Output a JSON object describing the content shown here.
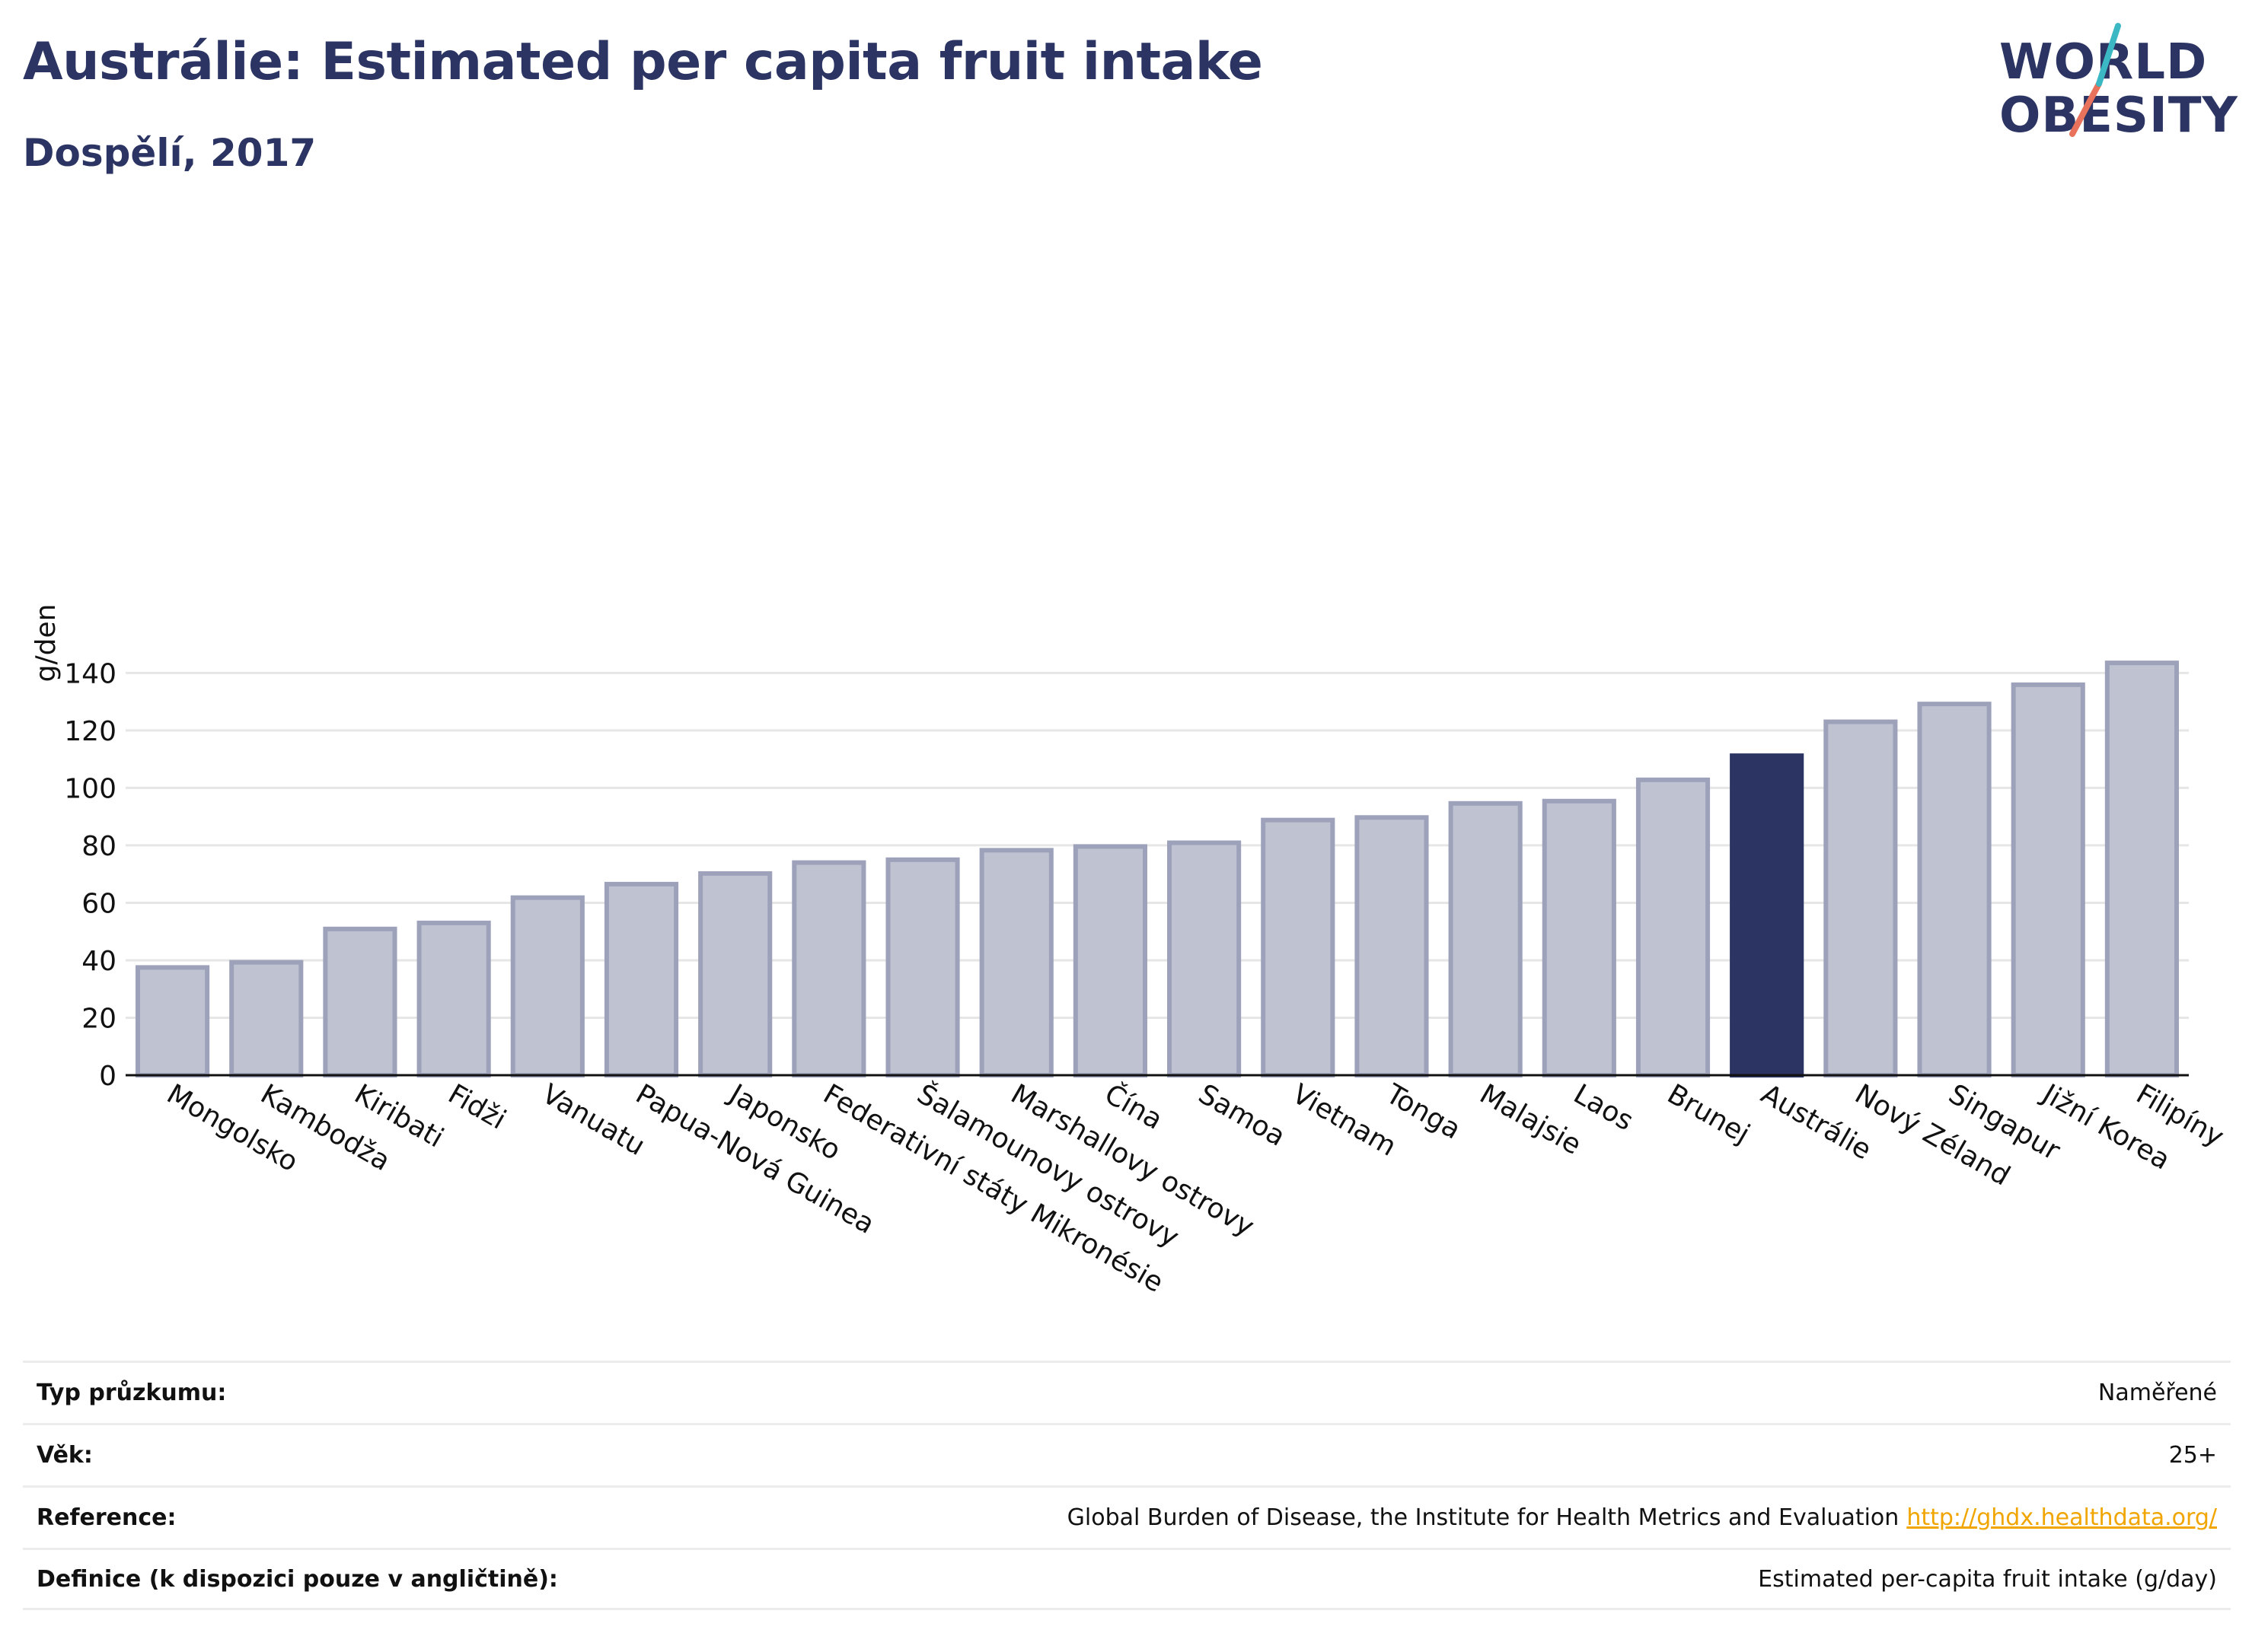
{
  "header": {
    "title": "Austrálie: Estimated per capita fruit intake",
    "subtitle": "Dospělí, 2017"
  },
  "logo": {
    "line1": "WORLD",
    "line2": "OBESITY"
  },
  "colors": {
    "highlight": "#2b3462",
    "bar": "#bfc2d1",
    "bar_border": "#9da2ba",
    "text": "#2b3462",
    "link": "#f0a500"
  },
  "chart_data": {
    "type": "bar",
    "title": "Austrálie: Estimated per capita fruit intake",
    "subtitle": "Dospělí, 2017",
    "xlabel": "",
    "ylabel": "g/den",
    "ylim": [
      0,
      150
    ],
    "yticks": [
      0,
      20,
      40,
      60,
      80,
      100,
      120,
      140
    ],
    "grid": true,
    "highlight": "Austrálie",
    "categories": [
      "Mongolsko",
      "Kambodža",
      "Kiribati",
      "Fidži",
      "Vanuatu",
      "Papua-Nová Guinea",
      "Japonsko",
      "Federativní státy Mikronésie",
      "Šalamounovy ostrovy",
      "Marshallovy ostrovy",
      "Čína",
      "Samoa",
      "Vietnam",
      "Tonga",
      "Malajsie",
      "Laos",
      "Brunej",
      "Austrálie",
      "Nový Zéland",
      "Singapur",
      "Jižní Korea",
      "Filipíny"
    ],
    "values": [
      37.5,
      39.3,
      50.9,
      53.0,
      61.8,
      66.5,
      70.2,
      74.0,
      75.0,
      78.3,
      79.6,
      80.9,
      88.8,
      89.7,
      94.6,
      95.4,
      102.8,
      111.2,
      123.0,
      129.2,
      135.9,
      143.5
    ]
  },
  "info": [
    {
      "label": "Typ průzkumu:",
      "value": "Naměřené"
    },
    {
      "label": "Věk:",
      "value": "25+"
    },
    {
      "label": "Reference:",
      "value": "Global Burden of Disease, the Institute for Health Metrics and Evaluation",
      "link": "http://ghdx.healthdata.org/"
    },
    {
      "label": "Definice (k dispozici pouze v angličtině):",
      "value": "Estimated per-capita fruit intake (g/day)"
    }
  ]
}
